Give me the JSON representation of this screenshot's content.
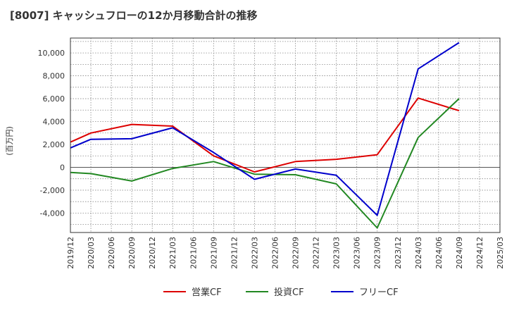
{
  "chart_data": {
    "type": "line",
    "title": "[8007]  キャッシュフローの12か月移動合計の推移",
    "ylabel": "(百万円)",
    "xlabel": "",
    "ylim": [
      -5700,
      11300
    ],
    "yticks": [
      -4000,
      -2000,
      0,
      2000,
      4000,
      6000,
      8000,
      10000
    ],
    "ytick_labels": [
      "-4,000",
      "-2,000",
      "0",
      "2,000",
      "4,000",
      "6,000",
      "8,000",
      "10,000"
    ],
    "categories": [
      "2019/12",
      "2020/03",
      "2020/06",
      "2020/09",
      "2020/12",
      "2021/03",
      "2021/06",
      "2021/09",
      "2021/12",
      "2022/03",
      "2022/06",
      "2022/09",
      "2022/12",
      "2023/03",
      "2023/06",
      "2023/09",
      "2023/12",
      "2024/03",
      "2024/06",
      "2024/09",
      "2024/12",
      "2025/03"
    ],
    "grid": true,
    "legend_position": "bottom",
    "series": [
      {
        "name": "営業CF",
        "color": "#dd0000",
        "values": [
          2200,
          3000,
          null,
          3750,
          null,
          3600,
          null,
          1000,
          null,
          -400,
          null,
          500,
          null,
          700,
          null,
          1100,
          null,
          6050,
          null,
          4950,
          null,
          null
        ]
      },
      {
        "name": "投資CF",
        "color": "#228822",
        "values": [
          -450,
          -550,
          null,
          -1200,
          null,
          -100,
          null,
          500,
          null,
          -600,
          null,
          -650,
          null,
          -1450,
          null,
          -5300,
          null,
          2600,
          null,
          6000,
          null,
          null
        ]
      },
      {
        "name": "フリーCF",
        "color": "#0000cc",
        "values": [
          1700,
          2450,
          null,
          2500,
          null,
          3450,
          null,
          1300,
          null,
          -1050,
          null,
          -150,
          null,
          -700,
          null,
          -4200,
          null,
          8600,
          null,
          10900,
          null,
          null
        ]
      }
    ]
  }
}
